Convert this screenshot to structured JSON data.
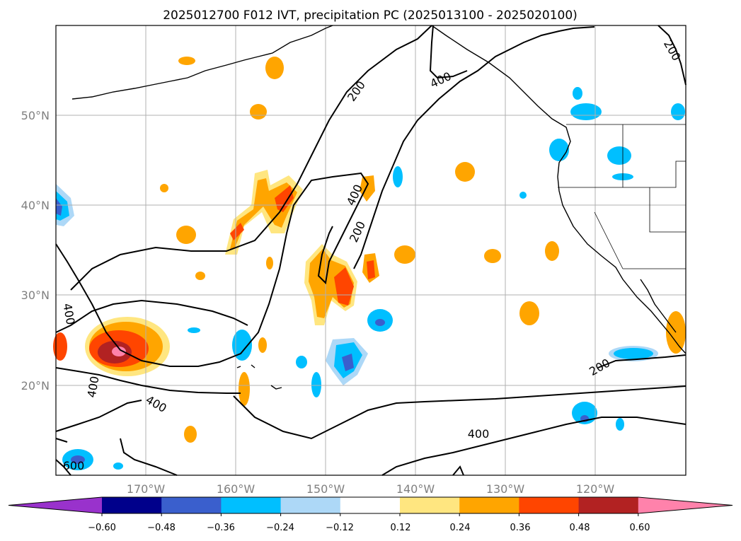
{
  "title": "2025012700 F012 IVT, precipitation PC (2025013100 - 2025020100)",
  "map": {
    "lon_range": [
      -180,
      -110
    ],
    "lat_range": [
      10,
      60
    ],
    "gridlines": true
  },
  "x_ticks": [
    "170°W",
    "160°W",
    "150°W",
    "140°W",
    "130°W",
    "120°W"
  ],
  "y_ticks": [
    "50°N",
    "40°N",
    "30°N",
    "20°N"
  ],
  "colorbar": {
    "ticks": [
      "−0.60",
      "−0.48",
      "−0.36",
      "−0.24",
      "−0.12",
      "0.12",
      "0.24",
      "0.36",
      "0.48",
      "0.60"
    ],
    "colors": [
      "#9932cc",
      "#00008b",
      "#3a5fcd",
      "#00bfff",
      "#add8f7",
      "#ffffff",
      "#ffe680",
      "#ffa500",
      "#ff4500",
      "#b22222",
      "#ff82ab"
    ],
    "extend": "both"
  },
  "ivt_contour_labels": [
    "200",
    "400",
    "200",
    "400",
    "200",
    "400",
    "400",
    "400",
    "200",
    "400",
    "600"
  ]
}
